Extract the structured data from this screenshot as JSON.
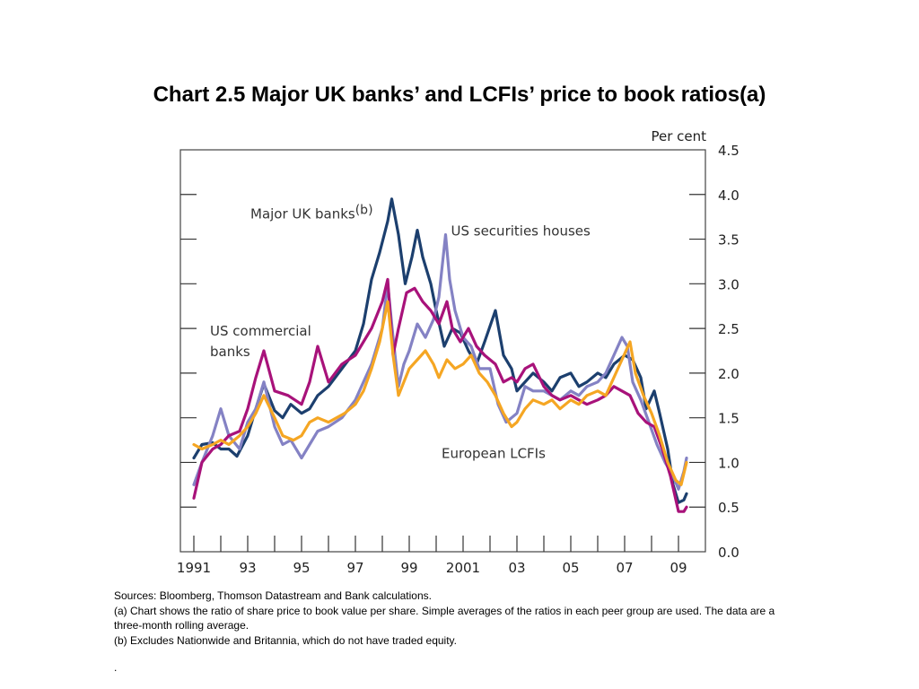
{
  "title": "Chart 2.5  Major UK banks’ and LCFIs’ price to book ratios(a)",
  "chart_data": {
    "type": "line",
    "unit_label": "Per cent",
    "ylim": [
      0,
      4.5
    ],
    "yticks": [
      "0.0",
      "0.5",
      "1.0",
      "1.5",
      "2.0",
      "2.5",
      "3.0",
      "3.5",
      "4.0",
      "4.5"
    ],
    "ytick_values": [
      0,
      0.5,
      1.0,
      1.5,
      2.0,
      2.5,
      3.0,
      3.5,
      4.0,
      4.5
    ],
    "xlim": [
      1990.5,
      2010.0
    ],
    "xtick_labels": [
      {
        "value": 1991,
        "label": "1991"
      },
      {
        "value": 1993,
        "label": "93"
      },
      {
        "value": 1995,
        "label": "95"
      },
      {
        "value": 1997,
        "label": "97"
      },
      {
        "value": 1999,
        "label": "99"
      },
      {
        "value": 2001,
        "label": "2001"
      },
      {
        "value": 2003,
        "label": "03"
      },
      {
        "value": 2005,
        "label": "05"
      },
      {
        "value": 2007,
        "label": "07"
      },
      {
        "value": 2009,
        "label": "09"
      }
    ],
    "minor_ticks": [
      1991,
      1992,
      1993,
      1994,
      1995,
      1996,
      1997,
      1998,
      1999,
      2000,
      2001,
      2002,
      2003,
      2004,
      2005,
      2006,
      2007,
      2008,
      2009
    ],
    "grid": false,
    "series": [
      {
        "name": "Major UK banks(b)",
        "color": "#1c3f6e",
        "points": [
          [
            1991.0,
            1.05
          ],
          [
            1991.3,
            1.2
          ],
          [
            1991.7,
            1.22
          ],
          [
            1992.0,
            1.15
          ],
          [
            1992.3,
            1.15
          ],
          [
            1992.6,
            1.07
          ],
          [
            1993.0,
            1.3
          ],
          [
            1993.3,
            1.6
          ],
          [
            1993.6,
            1.88
          ],
          [
            1994.0,
            1.58
          ],
          [
            1994.3,
            1.5
          ],
          [
            1994.6,
            1.65
          ],
          [
            1995.0,
            1.55
          ],
          [
            1995.3,
            1.6
          ],
          [
            1995.6,
            1.75
          ],
          [
            1996.0,
            1.85
          ],
          [
            1996.5,
            2.05
          ],
          [
            1997.0,
            2.25
          ],
          [
            1997.3,
            2.55
          ],
          [
            1997.6,
            3.05
          ],
          [
            1997.9,
            3.35
          ],
          [
            1998.2,
            3.7
          ],
          [
            1998.35,
            3.95
          ],
          [
            1998.6,
            3.55
          ],
          [
            1998.85,
            3.0
          ],
          [
            1999.1,
            3.3
          ],
          [
            1999.3,
            3.6
          ],
          [
            1999.5,
            3.3
          ],
          [
            1999.8,
            3.0
          ],
          [
            2000.0,
            2.7
          ],
          [
            2000.3,
            2.3
          ],
          [
            2000.6,
            2.5
          ],
          [
            2000.9,
            2.45
          ],
          [
            2001.2,
            2.25
          ],
          [
            2001.5,
            2.1
          ],
          [
            2001.8,
            2.35
          ],
          [
            2002.2,
            2.7
          ],
          [
            2002.5,
            2.2
          ],
          [
            2002.8,
            2.05
          ],
          [
            2003.0,
            1.8
          ],
          [
            2003.3,
            1.9
          ],
          [
            2003.6,
            2.0
          ],
          [
            2004.0,
            1.9
          ],
          [
            2004.3,
            1.8
          ],
          [
            2004.6,
            1.95
          ],
          [
            2005.0,
            2.0
          ],
          [
            2005.3,
            1.85
          ],
          [
            2005.6,
            1.9
          ],
          [
            2006.0,
            2.0
          ],
          [
            2006.3,
            1.95
          ],
          [
            2006.6,
            2.1
          ],
          [
            2007.0,
            2.2
          ],
          [
            2007.3,
            2.15
          ],
          [
            2007.6,
            1.95
          ],
          [
            2007.8,
            1.6
          ],
          [
            2008.1,
            1.8
          ],
          [
            2008.3,
            1.55
          ],
          [
            2008.6,
            1.15
          ],
          [
            2008.8,
            0.75
          ],
          [
            2009.0,
            0.55
          ],
          [
            2009.2,
            0.58
          ],
          [
            2009.3,
            0.65
          ]
        ]
      },
      {
        "name": "US securities houses",
        "color": "#8482c4",
        "points": [
          [
            1991.0,
            0.75
          ],
          [
            1991.3,
            1.0
          ],
          [
            1991.7,
            1.3
          ],
          [
            1992.0,
            1.6
          ],
          [
            1992.3,
            1.3
          ],
          [
            1992.7,
            1.15
          ],
          [
            1993.0,
            1.45
          ],
          [
            1993.3,
            1.6
          ],
          [
            1993.6,
            1.9
          ],
          [
            1994.0,
            1.4
          ],
          [
            1994.3,
            1.2
          ],
          [
            1994.6,
            1.25
          ],
          [
            1995.0,
            1.05
          ],
          [
            1995.3,
            1.2
          ],
          [
            1995.6,
            1.35
          ],
          [
            1996.0,
            1.4
          ],
          [
            1996.5,
            1.5
          ],
          [
            1997.0,
            1.7
          ],
          [
            1997.3,
            1.9
          ],
          [
            1997.6,
            2.1
          ],
          [
            1998.0,
            2.5
          ],
          [
            1998.2,
            3.0
          ],
          [
            1998.4,
            2.4
          ],
          [
            1998.6,
            1.85
          ],
          [
            1998.8,
            2.1
          ],
          [
            1999.0,
            2.25
          ],
          [
            1999.3,
            2.55
          ],
          [
            1999.6,
            2.4
          ],
          [
            1999.9,
            2.6
          ],
          [
            2000.1,
            2.85
          ],
          [
            2000.35,
            3.55
          ],
          [
            2000.5,
            3.05
          ],
          [
            2000.7,
            2.7
          ],
          [
            2001.0,
            2.4
          ],
          [
            2001.3,
            2.3
          ],
          [
            2001.6,
            2.05
          ],
          [
            2002.0,
            2.05
          ],
          [
            2002.3,
            1.65
          ],
          [
            2002.6,
            1.45
          ],
          [
            2003.0,
            1.55
          ],
          [
            2003.3,
            1.85
          ],
          [
            2003.6,
            1.8
          ],
          [
            2004.0,
            1.8
          ],
          [
            2004.3,
            1.75
          ],
          [
            2004.6,
            1.7
          ],
          [
            2005.0,
            1.8
          ],
          [
            2005.3,
            1.75
          ],
          [
            2005.6,
            1.85
          ],
          [
            2006.0,
            1.9
          ],
          [
            2006.3,
            2.0
          ],
          [
            2006.6,
            2.2
          ],
          [
            2006.9,
            2.4
          ],
          [
            2007.1,
            2.3
          ],
          [
            2007.3,
            1.9
          ],
          [
            2007.6,
            1.7
          ],
          [
            2007.9,
            1.45
          ],
          [
            2008.2,
            1.2
          ],
          [
            2008.5,
            1.0
          ],
          [
            2008.8,
            0.85
          ],
          [
            2009.0,
            0.7
          ],
          [
            2009.2,
            0.9
          ],
          [
            2009.3,
            1.05
          ]
        ]
      },
      {
        "name": "US commercial banks",
        "color": "#a8127a",
        "points": [
          [
            1991.0,
            0.6
          ],
          [
            1991.3,
            1.0
          ],
          [
            1991.7,
            1.15
          ],
          [
            1992.0,
            1.2
          ],
          [
            1992.3,
            1.3
          ],
          [
            1992.7,
            1.35
          ],
          [
            1993.0,
            1.6
          ],
          [
            1993.3,
            1.95
          ],
          [
            1993.6,
            2.25
          ],
          [
            1994.0,
            1.8
          ],
          [
            1994.5,
            1.75
          ],
          [
            1995.0,
            1.65
          ],
          [
            1995.3,
            1.9
          ],
          [
            1995.6,
            2.3
          ],
          [
            1996.0,
            1.9
          ],
          [
            1996.5,
            2.1
          ],
          [
            1997.0,
            2.2
          ],
          [
            1997.3,
            2.35
          ],
          [
            1997.6,
            2.5
          ],
          [
            1998.0,
            2.8
          ],
          [
            1998.2,
            3.05
          ],
          [
            1998.4,
            2.2
          ],
          [
            1998.6,
            2.5
          ],
          [
            1998.9,
            2.9
          ],
          [
            1999.2,
            2.95
          ],
          [
            1999.5,
            2.8
          ],
          [
            1999.8,
            2.7
          ],
          [
            2000.1,
            2.55
          ],
          [
            2000.4,
            2.8
          ],
          [
            2000.6,
            2.5
          ],
          [
            2000.9,
            2.35
          ],
          [
            2001.2,
            2.5
          ],
          [
            2001.5,
            2.3
          ],
          [
            2001.8,
            2.2
          ],
          [
            2002.2,
            2.1
          ],
          [
            2002.5,
            1.9
          ],
          [
            2002.8,
            1.95
          ],
          [
            2003.0,
            1.9
          ],
          [
            2003.3,
            2.05
          ],
          [
            2003.6,
            2.1
          ],
          [
            2004.0,
            1.85
          ],
          [
            2004.3,
            1.75
          ],
          [
            2004.6,
            1.7
          ],
          [
            2005.0,
            1.75
          ],
          [
            2005.3,
            1.7
          ],
          [
            2005.6,
            1.65
          ],
          [
            2006.0,
            1.7
          ],
          [
            2006.3,
            1.75
          ],
          [
            2006.6,
            1.85
          ],
          [
            2006.9,
            1.8
          ],
          [
            2007.2,
            1.75
          ],
          [
            2007.5,
            1.55
          ],
          [
            2007.8,
            1.45
          ],
          [
            2008.1,
            1.4
          ],
          [
            2008.4,
            1.15
          ],
          [
            2008.7,
            0.85
          ],
          [
            2009.0,
            0.45
          ],
          [
            2009.2,
            0.45
          ],
          [
            2009.3,
            0.5
          ]
        ]
      },
      {
        "name": "European LCFIs",
        "color": "#f5a623",
        "points": [
          [
            1991.0,
            1.2
          ],
          [
            1991.3,
            1.15
          ],
          [
            1991.7,
            1.2
          ],
          [
            1992.0,
            1.25
          ],
          [
            1992.3,
            1.2
          ],
          [
            1992.7,
            1.3
          ],
          [
            1993.0,
            1.4
          ],
          [
            1993.3,
            1.55
          ],
          [
            1993.6,
            1.75
          ],
          [
            1994.0,
            1.5
          ],
          [
            1994.3,
            1.3
          ],
          [
            1994.7,
            1.25
          ],
          [
            1995.0,
            1.3
          ],
          [
            1995.3,
            1.45
          ],
          [
            1995.6,
            1.5
          ],
          [
            1996.0,
            1.45
          ],
          [
            1996.3,
            1.5
          ],
          [
            1996.6,
            1.55
          ],
          [
            1997.0,
            1.65
          ],
          [
            1997.3,
            1.8
          ],
          [
            1997.6,
            2.05
          ],
          [
            1997.9,
            2.35
          ],
          [
            1998.2,
            2.8
          ],
          [
            1998.4,
            2.2
          ],
          [
            1998.6,
            1.75
          ],
          [
            1998.8,
            1.9
          ],
          [
            1999.0,
            2.05
          ],
          [
            1999.3,
            2.15
          ],
          [
            1999.6,
            2.25
          ],
          [
            1999.9,
            2.1
          ],
          [
            2000.1,
            1.95
          ],
          [
            2000.4,
            2.15
          ],
          [
            2000.7,
            2.05
          ],
          [
            2001.0,
            2.1
          ],
          [
            2001.3,
            2.2
          ],
          [
            2001.6,
            2.0
          ],
          [
            2001.9,
            1.9
          ],
          [
            2002.2,
            1.75
          ],
          [
            2002.5,
            1.55
          ],
          [
            2002.8,
            1.4
          ],
          [
            2003.0,
            1.45
          ],
          [
            2003.3,
            1.6
          ],
          [
            2003.6,
            1.7
          ],
          [
            2004.0,
            1.65
          ],
          [
            2004.3,
            1.7
          ],
          [
            2004.6,
            1.6
          ],
          [
            2005.0,
            1.7
          ],
          [
            2005.3,
            1.65
          ],
          [
            2005.6,
            1.75
          ],
          [
            2006.0,
            1.8
          ],
          [
            2006.3,
            1.75
          ],
          [
            2006.6,
            1.95
          ],
          [
            2006.9,
            2.15
          ],
          [
            2007.2,
            2.35
          ],
          [
            2007.4,
            2.0
          ],
          [
            2007.7,
            1.75
          ],
          [
            2008.0,
            1.55
          ],
          [
            2008.3,
            1.3
          ],
          [
            2008.6,
            1.0
          ],
          [
            2008.9,
            0.8
          ],
          [
            2009.1,
            0.75
          ],
          [
            2009.3,
            1.0
          ]
        ]
      }
    ],
    "annotations": [
      {
        "id": "uk",
        "text": "Major UK banks",
        "superscript": "(b)",
        "x": 1993.1,
        "y": 3.73
      },
      {
        "id": "ussec",
        "text": "US securities houses",
        "x": 2000.55,
        "y": 3.54
      },
      {
        "id": "uscom1",
        "text": "US commercial",
        "x": 1991.6,
        "y": 2.42
      },
      {
        "id": "uscom2",
        "text": "banks",
        "x": 1991.6,
        "y": 2.19
      },
      {
        "id": "eur",
        "text": "European LCFIs",
        "x": 2000.2,
        "y": 1.05
      }
    ]
  },
  "notes": [
    "Sources:  Bloomberg, Thomson Datastream and Bank calculations.",
    "(a) Chart shows the ratio of share price to book value per share.  Simple averages of the ratios in each peer group are used.  The data are a three-month rolling average.",
    "(b) Excludes Nationwide and Britannia, which do not have traded equity.",
    "."
  ]
}
